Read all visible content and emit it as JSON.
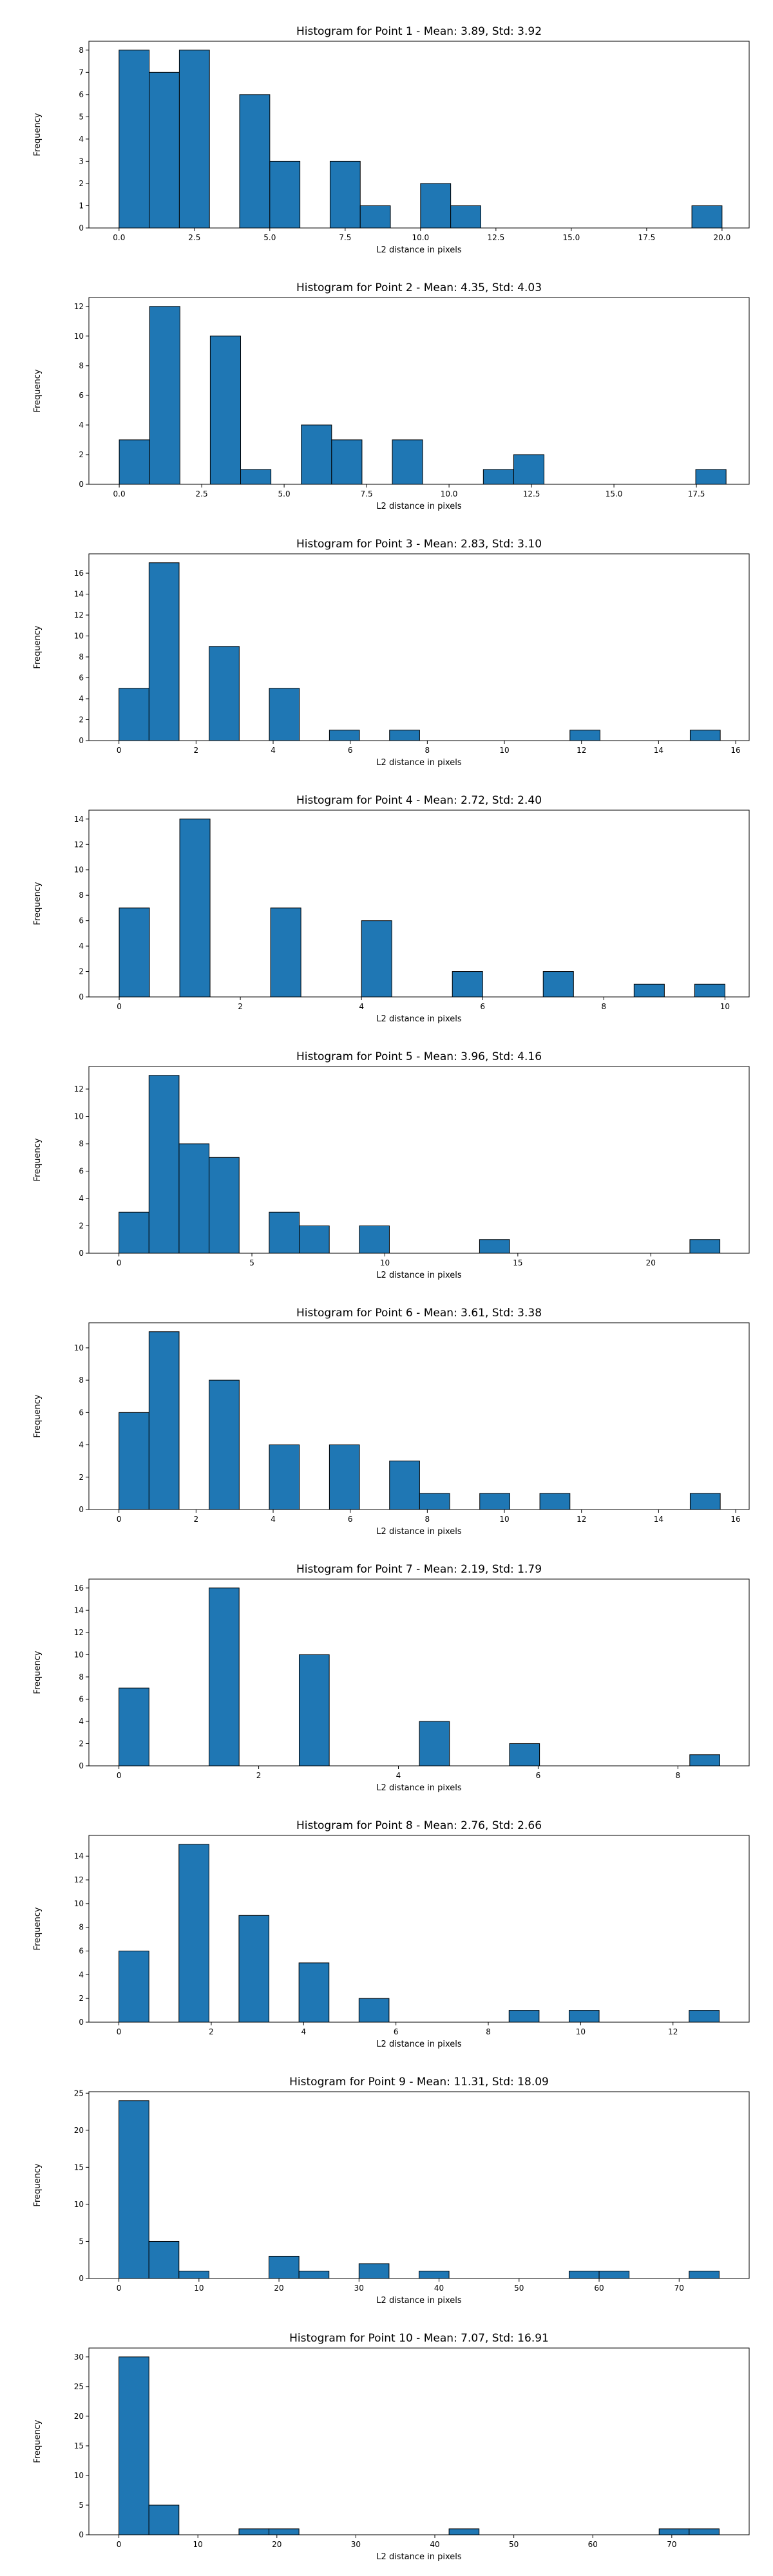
{
  "figure": {
    "bar_color": "#1f77b4",
    "edge_color": "#000000"
  },
  "chart_data": [
    {
      "type": "bar",
      "title": "Histogram for Point 1 - Mean: 3.89, Std: 3.92",
      "xlabel": "L2 distance in pixels",
      "ylabel": "Frequency",
      "xlim": [
        -1.0,
        20.9
      ],
      "ylim": [
        0,
        8.4
      ],
      "xticks": [
        0.0,
        2.5,
        5.0,
        7.5,
        10.0,
        12.5,
        15.0,
        17.5,
        20.0
      ],
      "xtick_labels": [
        "0.0",
        "2.5",
        "5.0",
        "7.5",
        "10.0",
        "12.5",
        "15.0",
        "17.5",
        "20.0"
      ],
      "yticks": [
        0,
        1,
        2,
        3,
        4,
        5,
        6,
        7,
        8
      ],
      "ytick_labels": [
        "0",
        "1",
        "2",
        "3",
        "4",
        "5",
        "6",
        "7",
        "8"
      ],
      "bin_edges": [
        0.0,
        1.0,
        2.0,
        3.0,
        4.0,
        5.0,
        6.0,
        7.0,
        8.0,
        9.0,
        10.0,
        11.0,
        12.0,
        13.0,
        14.0,
        15.0,
        16.0,
        17.0,
        18.0,
        19.0,
        20.0
      ],
      "counts": [
        8,
        7,
        8,
        0,
        6,
        3,
        0,
        3,
        1,
        0,
        2,
        1,
        0,
        0,
        0,
        0,
        0,
        0,
        0,
        1
      ]
    },
    {
      "type": "bar",
      "title": "Histogram for Point 2 - Mean: 4.35, Std: 4.03",
      "xlabel": "L2 distance in pixels",
      "ylabel": "Frequency",
      "xlim": [
        -0.92,
        19.1
      ],
      "ylim": [
        0,
        12.6
      ],
      "xticks": [
        0.0,
        2.5,
        5.0,
        7.5,
        10.0,
        12.5,
        15.0,
        17.5
      ],
      "xtick_labels": [
        "0.0",
        "2.5",
        "5.0",
        "7.5",
        "10.0",
        "12.5",
        "15.0",
        "17.5"
      ],
      "yticks": [
        0,
        2,
        4,
        6,
        8,
        10,
        12
      ],
      "ytick_labels": [
        "0",
        "2",
        "4",
        "6",
        "8",
        "10",
        "12"
      ],
      "bin_edges": [
        0.0,
        0.92,
        1.84,
        2.76,
        3.68,
        4.6,
        5.52,
        6.44,
        7.36,
        8.28,
        9.2,
        10.12,
        11.04,
        11.96,
        12.88,
        13.8,
        14.72,
        15.64,
        16.56,
        17.48,
        18.4
      ],
      "counts": [
        3,
        12,
        0,
        10,
        1,
        0,
        4,
        3,
        0,
        3,
        0,
        0,
        1,
        2,
        0,
        0,
        0,
        0,
        0,
        1
      ]
    },
    {
      "type": "bar",
      "title": "Histogram for Point 3 - Mean: 2.83, Std: 3.10",
      "xlabel": "L2 distance in pixels",
      "ylabel": "Frequency",
      "xlim": [
        -0.78,
        16.35
      ],
      "ylim": [
        0,
        17.85
      ],
      "xticks": [
        0,
        2,
        4,
        6,
        8,
        10,
        12,
        14,
        16
      ],
      "xtick_labels": [
        "0",
        "2",
        "4",
        "6",
        "8",
        "10",
        "12",
        "14",
        "16"
      ],
      "yticks": [
        0,
        2,
        4,
        6,
        8,
        10,
        12,
        14,
        16
      ],
      "ytick_labels": [
        "0",
        "2",
        "4",
        "6",
        "8",
        "10",
        "12",
        "14",
        "16"
      ],
      "bin_edges": [
        0.0,
        0.78,
        1.56,
        2.34,
        3.12,
        3.9,
        4.68,
        5.46,
        6.24,
        7.02,
        7.8,
        8.58,
        9.36,
        10.14,
        10.92,
        11.7,
        12.48,
        13.26,
        14.04,
        14.82,
        15.6
      ],
      "counts": [
        5,
        17,
        0,
        9,
        0,
        5,
        0,
        1,
        0,
        1,
        0,
        0,
        0,
        0,
        0,
        1,
        0,
        0,
        0,
        1
      ]
    },
    {
      "type": "bar",
      "title": "Histogram for Point 4 - Mean: 2.72, Std: 2.40",
      "xlabel": "L2 distance in pixels",
      "ylabel": "Frequency",
      "xlim": [
        -0.5,
        10.4
      ],
      "ylim": [
        0,
        14.7
      ],
      "xticks": [
        0,
        2,
        4,
        6,
        8,
        10
      ],
      "xtick_labels": [
        "0",
        "2",
        "4",
        "6",
        "8",
        "10"
      ],
      "yticks": [
        0,
        2,
        4,
        6,
        8,
        10,
        12,
        14
      ],
      "ytick_labels": [
        "0",
        "2",
        "4",
        "6",
        "8",
        "10",
        "12",
        "14"
      ],
      "bin_edges": [
        0.0,
        0.5,
        1.0,
        1.5,
        2.0,
        2.5,
        3.0,
        3.5,
        4.0,
        4.5,
        5.0,
        5.5,
        6.0,
        6.5,
        7.0,
        7.5,
        8.0,
        8.5,
        9.0,
        9.5,
        10.0
      ],
      "counts": [
        7,
        0,
        14,
        0,
        0,
        7,
        0,
        0,
        6,
        0,
        0,
        2,
        0,
        0,
        2,
        0,
        0,
        1,
        0,
        1
      ]
    },
    {
      "type": "bar",
      "title": "Histogram for Point 5 - Mean: 3.96, Std: 4.16",
      "xlabel": "L2 distance in pixels",
      "ylabel": "Frequency",
      "xlim": [
        -1.13,
        23.7
      ],
      "ylim": [
        0,
        13.65
      ],
      "xticks": [
        0,
        5,
        10,
        15,
        20
      ],
      "xtick_labels": [
        "0",
        "5",
        "10",
        "15",
        "20"
      ],
      "yticks": [
        0,
        2,
        4,
        6,
        8,
        10,
        12
      ],
      "ytick_labels": [
        "0",
        "2",
        "4",
        "6",
        "8",
        "10",
        "12"
      ],
      "bin_edges": [
        0.0,
        1.13,
        2.26,
        3.39,
        4.52,
        5.65,
        6.78,
        7.91,
        9.04,
        10.17,
        11.3,
        12.43,
        13.56,
        14.69,
        15.82,
        16.95,
        18.08,
        19.21,
        20.34,
        21.47,
        22.6
      ],
      "counts": [
        3,
        13,
        8,
        7,
        0,
        3,
        2,
        0,
        2,
        0,
        0,
        0,
        1,
        0,
        0,
        0,
        0,
        0,
        0,
        1
      ]
    },
    {
      "type": "bar",
      "title": "Histogram for Point 6 - Mean: 3.61, Std: 3.38",
      "xlabel": "L2 distance in pixels",
      "ylabel": "Frequency",
      "xlim": [
        -0.78,
        16.35
      ],
      "ylim": [
        0,
        11.55
      ],
      "xticks": [
        0,
        2,
        4,
        6,
        8,
        10,
        12,
        14,
        16
      ],
      "xtick_labels": [
        "0",
        "2",
        "4",
        "6",
        "8",
        "10",
        "12",
        "14",
        "16"
      ],
      "yticks": [
        0,
        2,
        4,
        6,
        8,
        10
      ],
      "ytick_labels": [
        "0",
        "2",
        "4",
        "6",
        "8",
        "10"
      ],
      "bin_edges": [
        0.0,
        0.78,
        1.56,
        2.34,
        3.12,
        3.9,
        4.68,
        5.46,
        6.24,
        7.02,
        7.8,
        8.58,
        9.36,
        10.14,
        10.92,
        11.7,
        12.48,
        13.26,
        14.04,
        14.82,
        15.6
      ],
      "counts": [
        6,
        11,
        0,
        8,
        0,
        4,
        0,
        4,
        0,
        3,
        1,
        0,
        1,
        0,
        1,
        0,
        0,
        0,
        0,
        1
      ]
    },
    {
      "type": "bar",
      "title": "Histogram for Point 7 - Mean: 2.19, Std: 1.79",
      "xlabel": "L2 distance in pixels",
      "ylabel": "Frequency",
      "xlim": [
        -0.43,
        9.02
      ],
      "ylim": [
        0,
        16.8
      ],
      "xticks": [
        0,
        2,
        4,
        6,
        8
      ],
      "xtick_labels": [
        "0",
        "2",
        "4",
        "6",
        "8"
      ],
      "yticks": [
        0,
        2,
        4,
        6,
        8,
        10,
        12,
        14,
        16
      ],
      "ytick_labels": [
        "0",
        "2",
        "4",
        "6",
        "8",
        "10",
        "12",
        "14",
        "16"
      ],
      "bin_edges": [
        0.0,
        0.43,
        0.86,
        1.29,
        1.72,
        2.15,
        2.58,
        3.01,
        3.44,
        3.87,
        4.3,
        4.73,
        5.16,
        5.59,
        6.02,
        6.45,
        6.88,
        7.31,
        7.74,
        8.17,
        8.6
      ],
      "counts": [
        7,
        0,
        0,
        16,
        0,
        0,
        10,
        0,
        0,
        0,
        4,
        0,
        0,
        2,
        0,
        0,
        0,
        0,
        0,
        1
      ]
    },
    {
      "type": "bar",
      "title": "Histogram for Point 8 - Mean: 2.76, Std: 2.66",
      "xlabel": "L2 distance in pixels",
      "ylabel": "Frequency",
      "xlim": [
        -0.65,
        13.65
      ],
      "ylim": [
        0,
        15.75
      ],
      "xticks": [
        0,
        2,
        4,
        6,
        8,
        10,
        12
      ],
      "xtick_labels": [
        "0",
        "2",
        "4",
        "6",
        "8",
        "10",
        "12"
      ],
      "yticks": [
        0,
        2,
        4,
        6,
        8,
        10,
        12,
        14
      ],
      "ytick_labels": [
        "0",
        "2",
        "4",
        "6",
        "8",
        "10",
        "12",
        "14"
      ],
      "bin_edges": [
        0.0,
        0.65,
        1.3,
        1.95,
        2.6,
        3.25,
        3.9,
        4.55,
        5.2,
        5.85,
        6.5,
        7.15,
        7.8,
        8.45,
        9.1,
        9.75,
        10.4,
        11.05,
        11.7,
        12.35,
        13.0
      ],
      "counts": [
        6,
        0,
        15,
        0,
        9,
        0,
        5,
        0,
        2,
        0,
        0,
        0,
        0,
        1,
        0,
        1,
        0,
        0,
        0,
        1
      ]
    },
    {
      "type": "bar",
      "title": "Histogram for Point 9 - Mean: 11.31, Std: 18.09",
      "xlabel": "L2 distance in pixels",
      "ylabel": "Frequency",
      "xlim": [
        -3.75,
        78.75
      ],
      "ylim": [
        0,
        25.2
      ],
      "xticks": [
        0,
        10,
        20,
        30,
        40,
        50,
        60,
        70
      ],
      "xtick_labels": [
        "0",
        "10",
        "20",
        "30",
        "40",
        "50",
        "60",
        "70"
      ],
      "yticks": [
        0,
        5,
        10,
        15,
        20,
        25
      ],
      "ytick_labels": [
        "0",
        "5",
        "10",
        "15",
        "20",
        "25"
      ],
      "bin_edges": [
        0.0,
        3.75,
        7.5,
        11.25,
        15.0,
        18.75,
        22.5,
        26.25,
        30.0,
        33.75,
        37.5,
        41.25,
        45.0,
        48.75,
        52.5,
        56.25,
        60.0,
        63.75,
        67.5,
        71.25,
        75.0
      ],
      "counts": [
        24,
        5,
        1,
        0,
        0,
        3,
        1,
        0,
        2,
        0,
        1,
        0,
        0,
        0,
        0,
        1,
        1,
        0,
        0,
        1
      ]
    },
    {
      "type": "bar",
      "title": "Histogram for Point 10 - Mean: 7.07, Std: 16.91",
      "xlabel": "L2 distance in pixels",
      "ylabel": "Frequency",
      "xlim": [
        -3.8,
        79.8
      ],
      "ylim": [
        0,
        31.5
      ],
      "xticks": [
        0,
        10,
        20,
        30,
        40,
        50,
        60,
        70
      ],
      "xtick_labels": [
        "0",
        "10",
        "20",
        "30",
        "40",
        "50",
        "60",
        "70"
      ],
      "yticks": [
        0,
        5,
        10,
        15,
        20,
        25,
        30
      ],
      "ytick_labels": [
        "0",
        "5",
        "10",
        "15",
        "20",
        "25",
        "30"
      ],
      "bin_edges": [
        0.0,
        3.8,
        7.6,
        11.4,
        15.2,
        19.0,
        22.8,
        26.6,
        30.4,
        34.2,
        38.0,
        41.8,
        45.6,
        49.4,
        53.2,
        57.0,
        60.8,
        64.6,
        68.4,
        72.2,
        76.0
      ],
      "counts": [
        30,
        5,
        0,
        0,
        1,
        1,
        0,
        0,
        0,
        0,
        0,
        1,
        0,
        0,
        0,
        0,
        0,
        0,
        1,
        1
      ]
    }
  ]
}
